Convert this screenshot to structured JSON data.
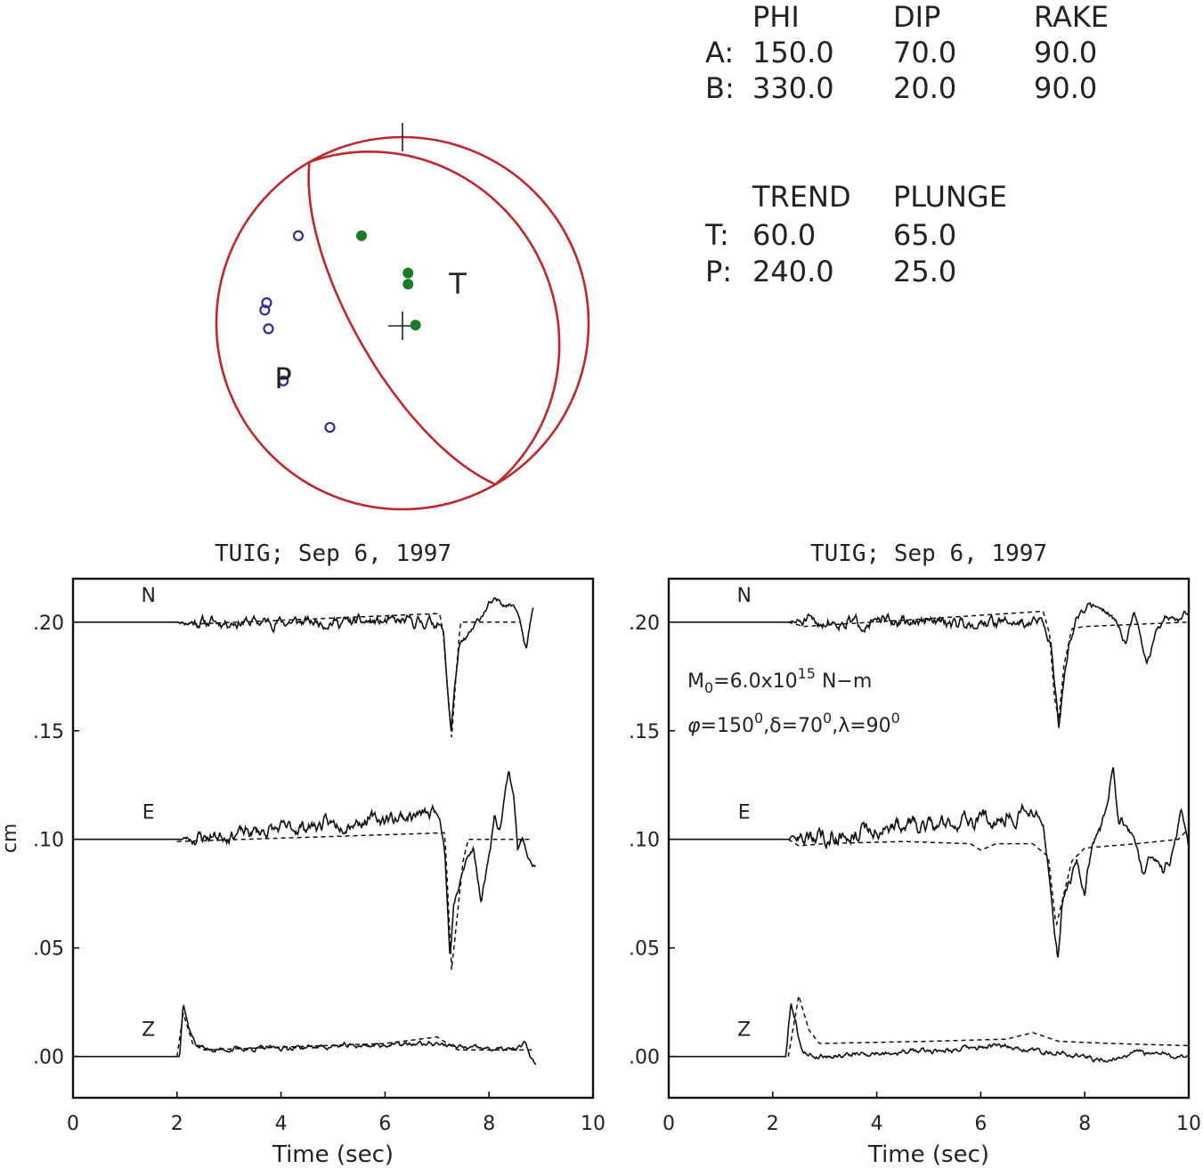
{
  "mechanism": {
    "planes_header": {
      "c1": "PHI",
      "c2": "DIP",
      "c3": "RAKE"
    },
    "planes": [
      {
        "label": "A:",
        "phi": "150.0",
        "dip": "70.0",
        "rake": "90.0"
      },
      {
        "label": "B:",
        "phi": "330.0",
        "dip": "20.0",
        "rake": "90.0"
      }
    ],
    "axes_header": {
      "c1": "TREND",
      "c2": "PLUNGE"
    },
    "axes": [
      {
        "label": "T:",
        "trend": "60.0",
        "plunge": "65.0"
      },
      {
        "label": "P:",
        "trend": "240.0",
        "plunge": "25.0"
      }
    ],
    "beachball": {
      "t_label": "T",
      "p_label": "P",
      "circle_color": "#c0272d",
      "compression_color": "#1d7a2a",
      "dilatation_color": "#2b2b9a",
      "compressions": [
        [
          -22,
          -47
        ],
        [
          3,
          -27
        ],
        [
          3,
          -21
        ],
        [
          7,
          1
        ]
      ],
      "dilatations": [
        [
          -56,
          -47
        ],
        [
          -73,
          -11
        ],
        [
          -74,
          -7
        ],
        [
          -72,
          3
        ],
        [
          -64,
          31
        ],
        [
          -39,
          56
        ]
      ]
    }
  },
  "chart_data": [
    {
      "type": "line",
      "title": "TUIG; Sep 6, 1997",
      "xlabel": "Time (sec)",
      "ylabel": "cm",
      "xlim": [
        0,
        10
      ],
      "ylim": [
        -0.019,
        0.22
      ],
      "xticks": [
        0,
        2,
        4,
        6,
        8,
        10
      ],
      "yticks": [
        0.0,
        0.05,
        0.1,
        0.15,
        0.2
      ],
      "ytick_labels": [
        ".00",
        ".05",
        ".10",
        ".15",
        ".20"
      ],
      "annotation_lines": [],
      "traces": [
        {
          "label": "N",
          "offset": 0.2,
          "onset": 2.0,
          "end": 8.85,
          "seed": 11,
          "amp": 0.0028,
          "obs": [
            [
              7.0,
              0.0
            ],
            [
              7.12,
              -0.004
            ],
            [
              7.2,
              -0.03
            ],
            [
              7.27,
              -0.05
            ],
            [
              7.34,
              -0.03
            ],
            [
              7.42,
              -0.012
            ],
            [
              7.55,
              -0.008
            ],
            [
              7.7,
              -0.003
            ],
            [
              7.85,
              0.003
            ],
            [
              8.0,
              0.008
            ],
            [
              8.2,
              0.01
            ],
            [
              8.4,
              0.008
            ],
            [
              8.5,
              0.008
            ],
            [
              8.6,
              0.002
            ],
            [
              8.72,
              -0.012
            ],
            [
              8.8,
              0.0
            ],
            [
              8.85,
              0.006
            ]
          ],
          "syn": [
            [
              2.0,
              0.0
            ],
            [
              2.2,
              -0.001
            ],
            [
              7.05,
              0.004
            ],
            [
              7.12,
              -0.005
            ],
            [
              7.2,
              -0.03
            ],
            [
              7.28,
              -0.053
            ],
            [
              7.38,
              -0.02
            ],
            [
              7.45,
              0.0
            ],
            [
              8.6,
              0.0
            ]
          ]
        },
        {
          "label": "E",
          "offset": 0.1,
          "onset": 2.05,
          "end": 8.9,
          "seed": 23,
          "amp": 0.0035,
          "drift": 0.012,
          "obs": [
            [
              6.9,
              0.014
            ],
            [
              7.05,
              0.012
            ],
            [
              7.15,
              -0.005
            ],
            [
              7.25,
              -0.055
            ],
            [
              7.32,
              -0.03
            ],
            [
              7.45,
              -0.02
            ],
            [
              7.55,
              -0.01
            ],
            [
              7.7,
              -0.005
            ],
            [
              7.85,
              -0.028
            ],
            [
              7.98,
              -0.01
            ],
            [
              8.1,
              0.01
            ],
            [
              8.2,
              0.005
            ],
            [
              8.3,
              0.02
            ],
            [
              8.38,
              0.032
            ],
            [
              8.48,
              0.02
            ],
            [
              8.55,
              -0.005
            ],
            [
              8.65,
              0.0
            ],
            [
              8.75,
              -0.006
            ],
            [
              8.9,
              -0.014
            ]
          ],
          "syn": [
            [
              2.0,
              -0.001
            ],
            [
              7.15,
              0.003
            ],
            [
              7.28,
              -0.06
            ],
            [
              7.5,
              -0.01
            ],
            [
              7.6,
              0.0
            ],
            [
              8.85,
              0.0
            ]
          ]
        },
        {
          "label": "Z",
          "offset": 0.0,
          "onset": 2.05,
          "end": 8.9,
          "seed": 37,
          "amp": 0.002,
          "drift": 0.003,
          "obs": [
            [
              2.05,
              0.0
            ],
            [
              2.12,
              0.026
            ],
            [
              2.22,
              0.014
            ],
            [
              2.35,
              0.006
            ],
            [
              2.6,
              0.003
            ],
            [
              7.0,
              0.006
            ],
            [
              7.5,
              0.004
            ],
            [
              8.5,
              0.003
            ],
            [
              8.7,
              0.006
            ],
            [
              8.8,
              0.0
            ],
            [
              8.9,
              -0.004
            ]
          ],
          "syn": [
            [
              2.0,
              0.0
            ],
            [
              2.12,
              0.02
            ],
            [
              2.3,
              0.006
            ],
            [
              2.5,
              0.003
            ],
            [
              6.0,
              0.006
            ],
            [
              7.0,
              0.009
            ],
            [
              7.4,
              0.003
            ],
            [
              8.85,
              0.003
            ]
          ]
        }
      ]
    },
    {
      "type": "line",
      "title": "TUIG; Sep 6, 1997",
      "xlabel": "Time (sec)",
      "ylabel": "",
      "xlim": [
        0,
        10
      ],
      "ylim": [
        -0.019,
        0.22
      ],
      "xticks": [
        0,
        2,
        4,
        6,
        8,
        10
      ],
      "yticks": [
        0.0,
        0.05,
        0.1,
        0.15,
        0.2
      ],
      "ytick_labels": [
        ".00",
        ".05",
        ".10",
        ".15",
        ".20"
      ],
      "annotation_lines": [
        "M0=6.0x10^15 N−m",
        "φ=150°, δ=70°, λ=90°"
      ],
      "traces": [
        {
          "label": "N",
          "offset": 0.2,
          "onset": 2.3,
          "end": 10.0,
          "seed": 51,
          "amp": 0.003,
          "obs": [
            [
              7.2,
              0.0
            ],
            [
              7.35,
              -0.01
            ],
            [
              7.45,
              -0.035
            ],
            [
              7.5,
              -0.05
            ],
            [
              7.58,
              -0.03
            ],
            [
              7.7,
              -0.01
            ],
            [
              7.85,
              0.003
            ],
            [
              8.0,
              0.006
            ],
            [
              8.2,
              0.008
            ],
            [
              8.4,
              0.006
            ],
            [
              8.6,
              0.0
            ],
            [
              8.8,
              -0.01
            ],
            [
              8.95,
              0.005
            ],
            [
              9.1,
              -0.01
            ],
            [
              9.2,
              -0.02
            ],
            [
              9.35,
              -0.005
            ],
            [
              9.6,
              0.003
            ],
            [
              9.8,
              0.0
            ],
            [
              10.0,
              0.005
            ]
          ],
          "syn": [
            [
              2.3,
              0.0
            ],
            [
              2.6,
              -0.002
            ],
            [
              7.2,
              0.005
            ],
            [
              7.32,
              -0.005
            ],
            [
              7.42,
              -0.035
            ],
            [
              7.5,
              -0.045
            ],
            [
              7.6,
              -0.02
            ],
            [
              7.75,
              -0.003
            ],
            [
              8.0,
              -0.002
            ],
            [
              9.0,
              -0.001
            ],
            [
              10.0,
              0.0
            ]
          ]
        },
        {
          "label": "E",
          "offset": 0.1,
          "onset": 2.3,
          "end": 10.0,
          "seed": 63,
          "amp": 0.0045,
          "drift": 0.012,
          "obs": [
            [
              6.8,
              0.014
            ],
            [
              7.2,
              0.01
            ],
            [
              7.3,
              -0.01
            ],
            [
              7.4,
              -0.035
            ],
            [
              7.48,
              -0.055
            ],
            [
              7.56,
              -0.03
            ],
            [
              7.7,
              -0.02
            ],
            [
              7.85,
              -0.01
            ],
            [
              8.0,
              -0.025
            ],
            [
              8.15,
              0.0
            ],
            [
              8.3,
              0.005
            ],
            [
              8.45,
              0.02
            ],
            [
              8.55,
              0.034
            ],
            [
              8.65,
              0.01
            ],
            [
              8.8,
              0.005
            ],
            [
              8.95,
              0.0
            ],
            [
              9.1,
              -0.015
            ],
            [
              9.3,
              -0.005
            ],
            [
              9.5,
              -0.015
            ],
            [
              9.7,
              -0.005
            ],
            [
              9.85,
              0.015
            ],
            [
              10.0,
              -0.005
            ]
          ],
          "syn": [
            [
              2.3,
              0.0
            ],
            [
              2.5,
              -0.003
            ],
            [
              3.0,
              -0.002
            ],
            [
              4.5,
              -0.001
            ],
            [
              5.8,
              -0.002
            ],
            [
              6.0,
              -0.005
            ],
            [
              6.3,
              -0.002
            ],
            [
              7.0,
              -0.002
            ],
            [
              7.3,
              -0.008
            ],
            [
              7.45,
              -0.04
            ],
            [
              7.55,
              -0.03
            ],
            [
              7.75,
              -0.01
            ],
            [
              8.0,
              -0.004
            ],
            [
              9.0,
              -0.002
            ],
            [
              9.8,
              0.0
            ],
            [
              10.0,
              0.005
            ]
          ]
        },
        {
          "label": "Z",
          "offset": 0.0,
          "onset": 2.25,
          "end": 10.0,
          "seed": 79,
          "amp": 0.0022,
          "obs": [
            [
              2.25,
              0.0
            ],
            [
              2.35,
              0.025
            ],
            [
              2.45,
              0.015
            ],
            [
              2.55,
              0.003
            ],
            [
              2.8,
              0.0
            ],
            [
              6.0,
              0.004
            ],
            [
              6.5,
              0.005
            ],
            [
              7.0,
              0.003
            ],
            [
              8.0,
              0.0
            ],
            [
              8.5,
              -0.002
            ],
            [
              9.0,
              0.002
            ],
            [
              10.0,
              0.0
            ]
          ],
          "syn": [
            [
              2.3,
              0.0
            ],
            [
              2.5,
              0.028
            ],
            [
              2.7,
              0.012
            ],
            [
              2.9,
              0.006
            ],
            [
              5.0,
              0.007
            ],
            [
              6.5,
              0.008
            ],
            [
              7.0,
              0.011
            ],
            [
              7.5,
              0.007
            ],
            [
              8.5,
              0.006
            ],
            [
              10.0,
              0.005
            ]
          ]
        }
      ]
    }
  ]
}
